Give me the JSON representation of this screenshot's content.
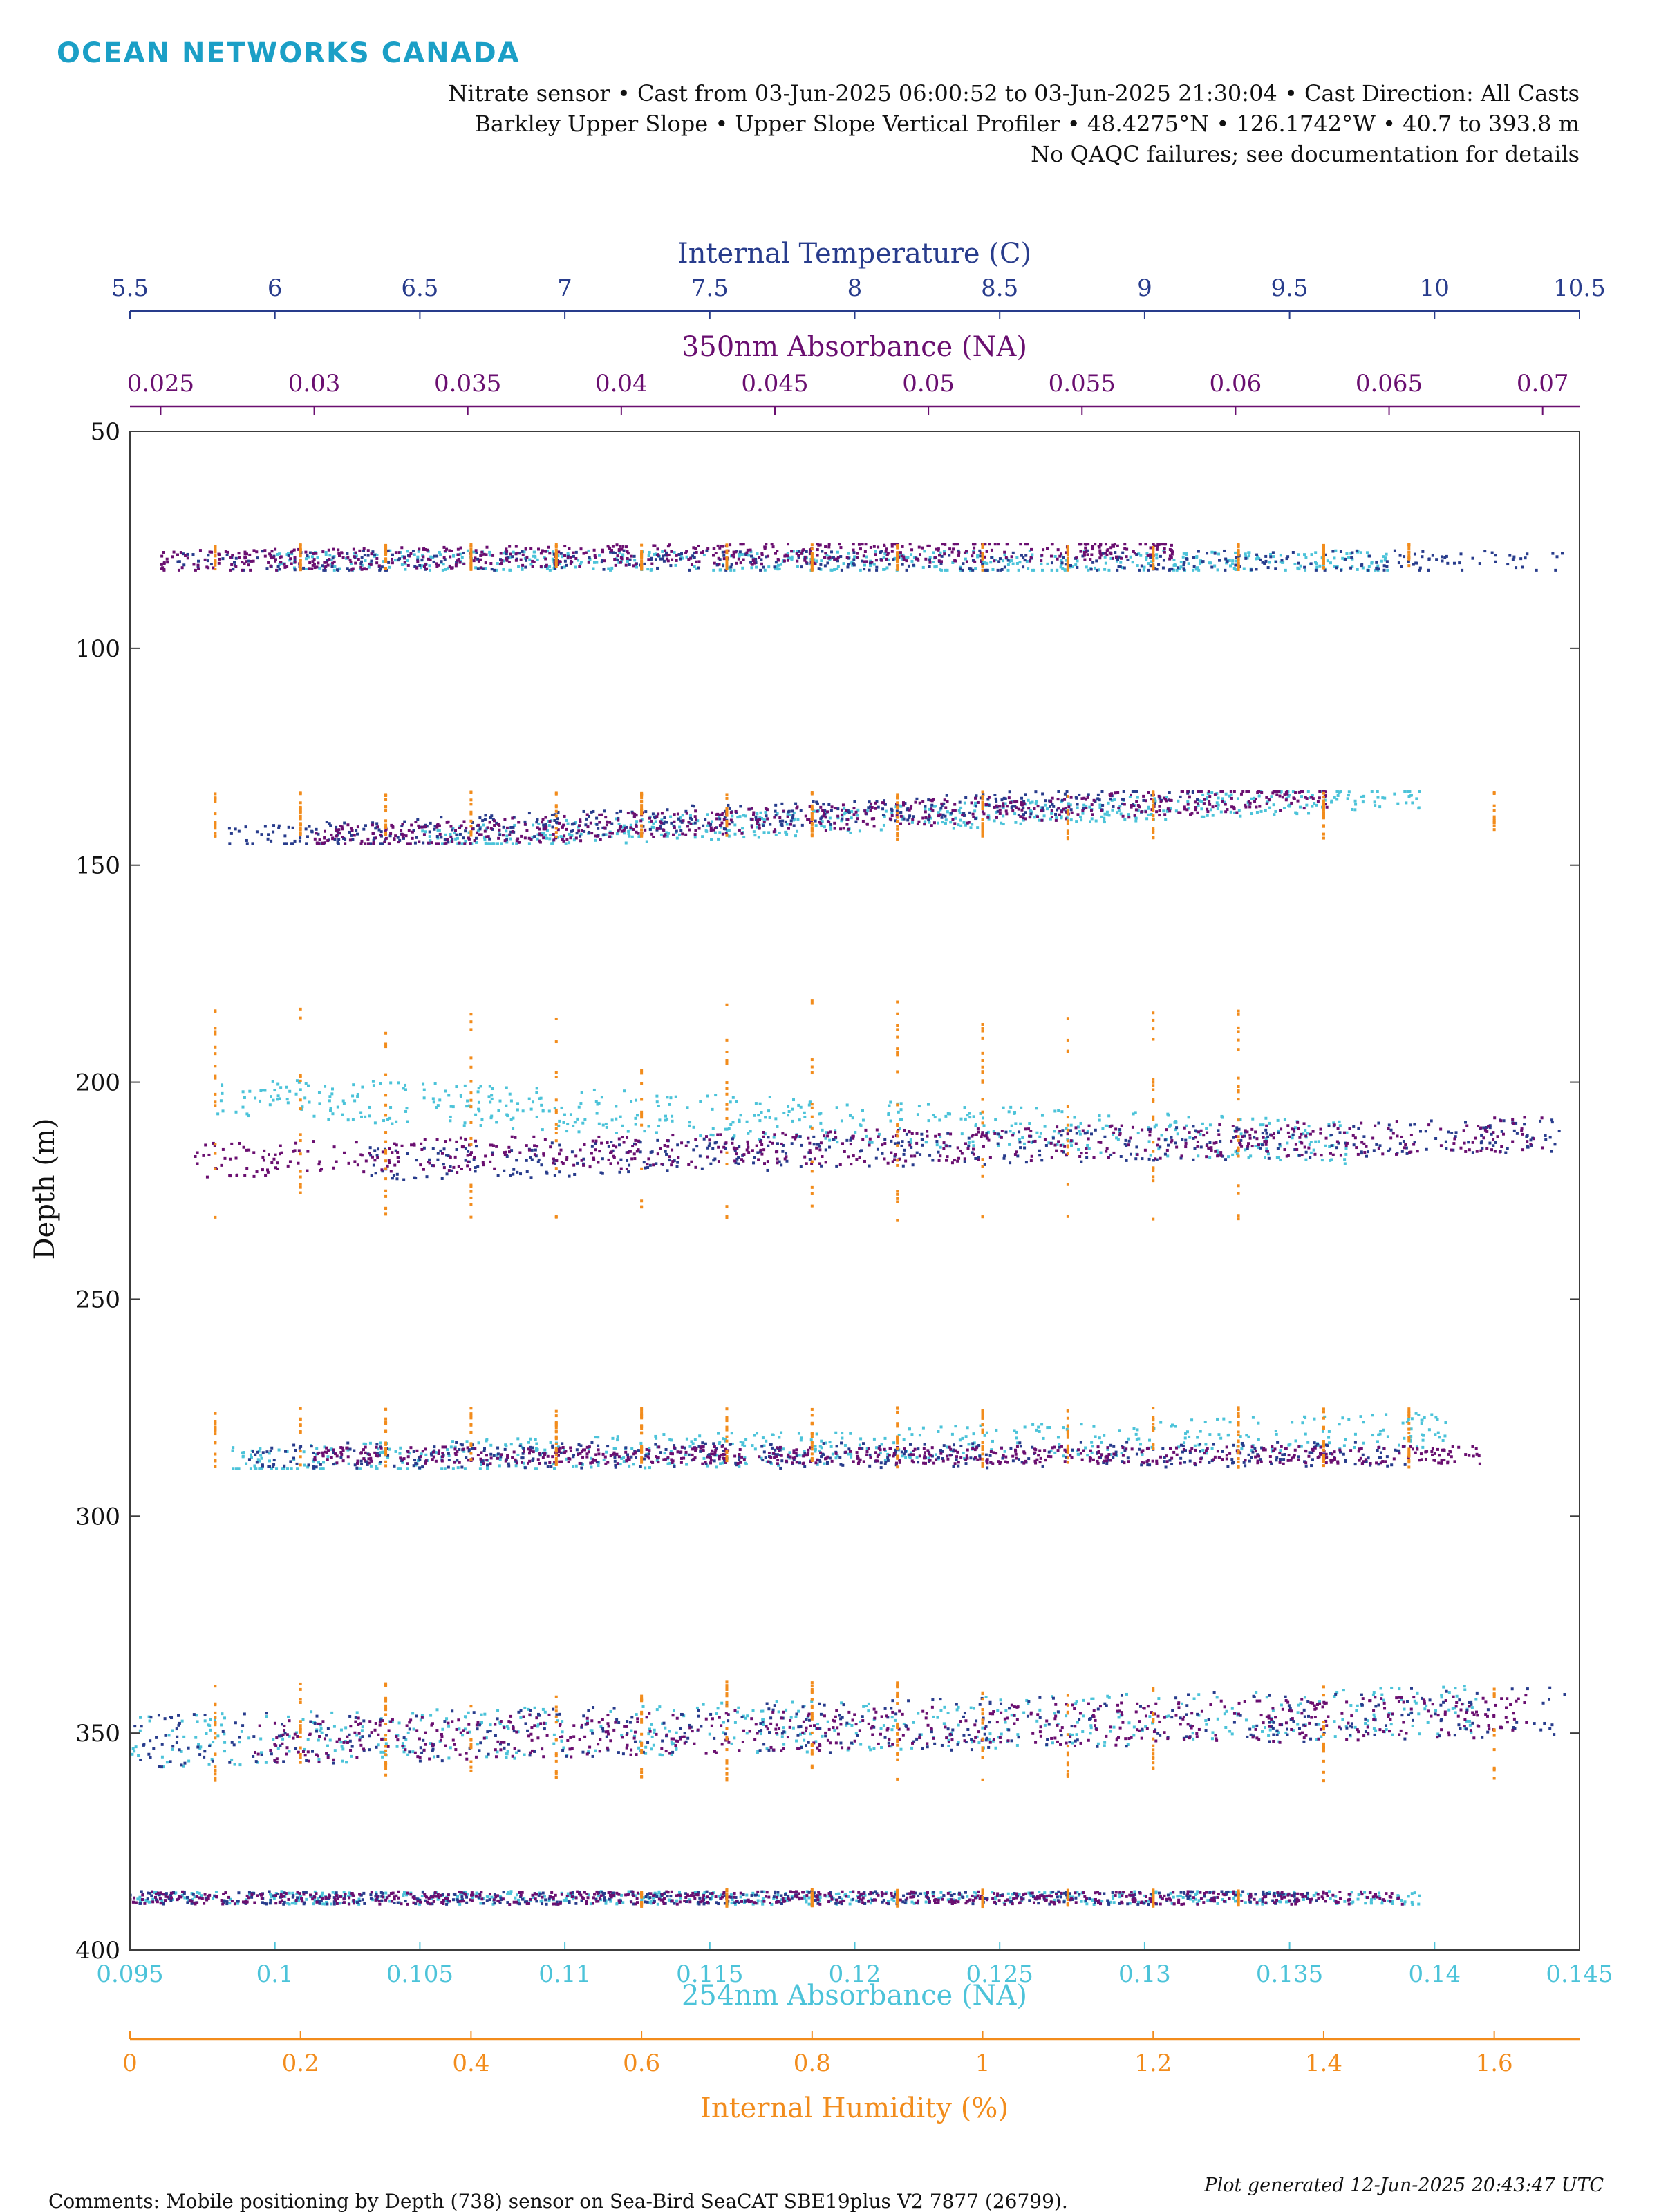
{
  "header": {
    "logo_text": "OCEAN NETWORKS CANADA",
    "info_lines": [
      "Nitrate sensor • Cast from 03-Jun-2025 06:00:52 to 03-Jun-2025 21:30:04 • Cast Direction: All Casts",
      "Barkley Upper Slope • Upper Slope Vertical Profiler • 48.4275°N • 126.1742°W • 40.7 to 393.8 m",
      "No QAQC failures; see documentation for details"
    ]
  },
  "footer": {
    "comments": "Comments: Mobile positioning by Depth (738) sensor on Sea-Bird SeaCAT SBE19plus V2 7877 (26799).",
    "generated": "Plot generated 12-Jun-2025 20:43:47 UTC"
  },
  "colors": {
    "temperature": "#283c8c",
    "absorbance350": "#6a0f70",
    "absorbance254": "#4cc3d9",
    "humidity": "#f28c1c",
    "logo": "#1b9fc6",
    "frame": "#3c3c3c"
  },
  "chart_data": {
    "type": "scatter",
    "y_axis": {
      "label": "Depth (m)",
      "range": [
        50,
        400
      ],
      "reversed": true,
      "ticks": [
        50,
        100,
        150,
        200,
        250,
        300,
        350,
        400
      ],
      "tick_labels": [
        "50",
        "100",
        "150",
        "200",
        "250",
        "300",
        "350",
        "400"
      ]
    },
    "x_axes": [
      {
        "id": "temperature",
        "label": "Internal Temperature (C)",
        "position": "top-outer",
        "range": [
          5.5,
          10.5
        ],
        "ticks": [
          5.5,
          6,
          6.5,
          7,
          7.5,
          8,
          8.5,
          9,
          9.5,
          10,
          10.5
        ],
        "tick_labels": [
          "5.5",
          "6",
          "6.5",
          "7",
          "7.5",
          "8",
          "8.5",
          "9",
          "9.5",
          "10",
          "10.5"
        ]
      },
      {
        "id": "absorbance350",
        "label": "350nm Absorbance (NA)",
        "position": "top-inner",
        "range": [
          0.024,
          0.0712
        ],
        "ticks": [
          0.025,
          0.03,
          0.035,
          0.04,
          0.045,
          0.05,
          0.055,
          0.06,
          0.065,
          0.07
        ],
        "tick_labels": [
          "0.025",
          "0.03",
          "0.035",
          "0.04",
          "0.045",
          "0.05",
          "0.055",
          "0.06",
          "0.065",
          "0.07"
        ]
      },
      {
        "id": "absorbance254",
        "label": "254nm Absorbance (NA)",
        "position": "bottom-inner",
        "range": [
          0.095,
          0.145
        ],
        "ticks": [
          0.095,
          0.1,
          0.105,
          0.11,
          0.115,
          0.12,
          0.125,
          0.13,
          0.135,
          0.14,
          0.145
        ],
        "tick_labels": [
          "0.095",
          "0.1",
          "0.105",
          "0.11",
          "0.115",
          "0.12",
          "0.125",
          "0.13",
          "0.135",
          "0.14",
          "0.145"
        ]
      },
      {
        "id": "humidity",
        "label": "Internal Humidity (%)",
        "position": "bottom-outer",
        "range": [
          0,
          1.7
        ],
        "ticks": [
          0,
          0.2,
          0.4,
          0.6,
          0.8,
          1,
          1.2,
          1.4,
          1.6
        ],
        "tick_labels": [
          "0",
          "0.2",
          "0.4",
          "0.6",
          "0.8",
          "1",
          "1.2",
          "1.4",
          "1.6"
        ]
      }
    ],
    "grid": false,
    "casts": [
      {
        "depth_min": 76,
        "depth_max": 82,
        "temperature": {
          "start": [
            5.65,
            80
          ],
          "end": [
            10.45,
            80
          ],
          "spread": 2.5
        },
        "absorbance350": {
          "start": [
            0.025,
            80
          ],
          "end": [
            0.058,
            77
          ],
          "spread": 2.5
        },
        "absorbance254": {
          "start": [
            0.1,
            80
          ],
          "end": [
            0.1385,
            80
          ],
          "spread": 2.5
        },
        "humidity": {
          "values": [
            0,
            0.1,
            0.2,
            0.3,
            0.4,
            0.5,
            0.6,
            0.7,
            0.8,
            0.9,
            1.0,
            1.1,
            1.2,
            1.3,
            1.4,
            1.5
          ],
          "depth_range": [
            76,
            82
          ]
        }
      },
      {
        "depth_min": 133,
        "depth_max": 145,
        "temperature": {
          "start": [
            5.83,
            144
          ],
          "end": [
            9.2,
            134
          ],
          "spread": 3
        },
        "absorbance350": {
          "start": [
            0.03,
            144
          ],
          "end": [
            0.063,
            134
          ],
          "spread": 3
        },
        "absorbance254": {
          "start": [
            0.105,
            144
          ],
          "end": [
            0.1395,
            134
          ],
          "spread": 3
        },
        "humidity": {
          "values": [
            0.1,
            0.2,
            0.3,
            0.4,
            0.5,
            0.6,
            0.7,
            0.8,
            0.9,
            1.0,
            1.1,
            1.2,
            1.4,
            1.6
          ],
          "depth_range": [
            133,
            144
          ]
        }
      },
      {
        "depth_min": 181,
        "depth_max": 232,
        "temperature": {
          "start": [
            6.3,
            219
          ],
          "end": [
            10.45,
            212
          ],
          "spread": 4
        },
        "absorbance350": {
          "start": [
            0.026,
            218
          ],
          "end": [
            0.07,
            212
          ],
          "spread": 4
        },
        "absorbance254": {
          "start": [
            0.098,
            203
          ],
          "end": [
            0.137,
            214
          ],
          "spread": 5
        },
        "humidity": {
          "values": [
            0.1,
            0.2,
            0.3,
            0.4,
            0.5,
            0.6,
            0.7,
            0.8,
            0.9,
            1.0,
            1.1,
            1.2,
            1.3
          ],
          "depth_range": [
            181,
            232
          ]
        }
      },
      {
        "depth_min": 275,
        "depth_max": 289,
        "temperature": {
          "start": [
            5.9,
            286
          ],
          "end": [
            9.9,
            286
          ],
          "spread": 3
        },
        "absorbance350": {
          "start": [
            0.03,
            286
          ],
          "end": [
            0.068,
            286
          ],
          "spread": 2
        },
        "absorbance254": {
          "start": [
            0.0985,
            288
          ],
          "end": [
            0.1405,
            280
          ],
          "spread": 4
        },
        "humidity": {
          "values": [
            0.1,
            0.2,
            0.3,
            0.4,
            0.5,
            0.6,
            0.7,
            0.8,
            0.9,
            1.0,
            1.1,
            1.2,
            1.3,
            1.4,
            1.5
          ],
          "depth_range": [
            275,
            289
          ]
        }
      },
      {
        "depth_min": 338,
        "depth_max": 361,
        "temperature": {
          "start": [
            5.5,
            352
          ],
          "end": [
            10.45,
            345
          ],
          "spread": 6
        },
        "absorbance350": {
          "start": [
            0.028,
            352
          ],
          "end": [
            0.0695,
            346
          ],
          "spread": 5
        },
        "absorbance254": {
          "start": [
            0.095,
            352
          ],
          "end": [
            0.1415,
            345
          ],
          "spread": 6
        },
        "humidity": {
          "values": [
            0.1,
            0.2,
            0.3,
            0.4,
            0.5,
            0.6,
            0.7,
            0.8,
            0.9,
            1.0,
            1.1,
            1.2,
            1.4,
            1.6
          ],
          "depth_range": [
            338,
            361
          ]
        }
      },
      {
        "depth_min": 386,
        "depth_max": 390,
        "temperature": {
          "start": [
            5.5,
            388
          ],
          "end": [
            9.6,
            388
          ],
          "spread": 1.5
        },
        "absorbance350": {
          "start": [
            0.024,
            388
          ],
          "end": [
            0.0655,
            388
          ],
          "spread": 1.5
        },
        "absorbance254": {
          "start": [
            0.095,
            388
          ],
          "end": [
            0.1395,
            388
          ],
          "spread": 1.5
        },
        "humidity": {
          "values": [
            0.6,
            0.7,
            0.8,
            0.9,
            1.0,
            1.1,
            1.2,
            1.3
          ],
          "depth_range": [
            386,
            390
          ]
        }
      }
    ]
  }
}
